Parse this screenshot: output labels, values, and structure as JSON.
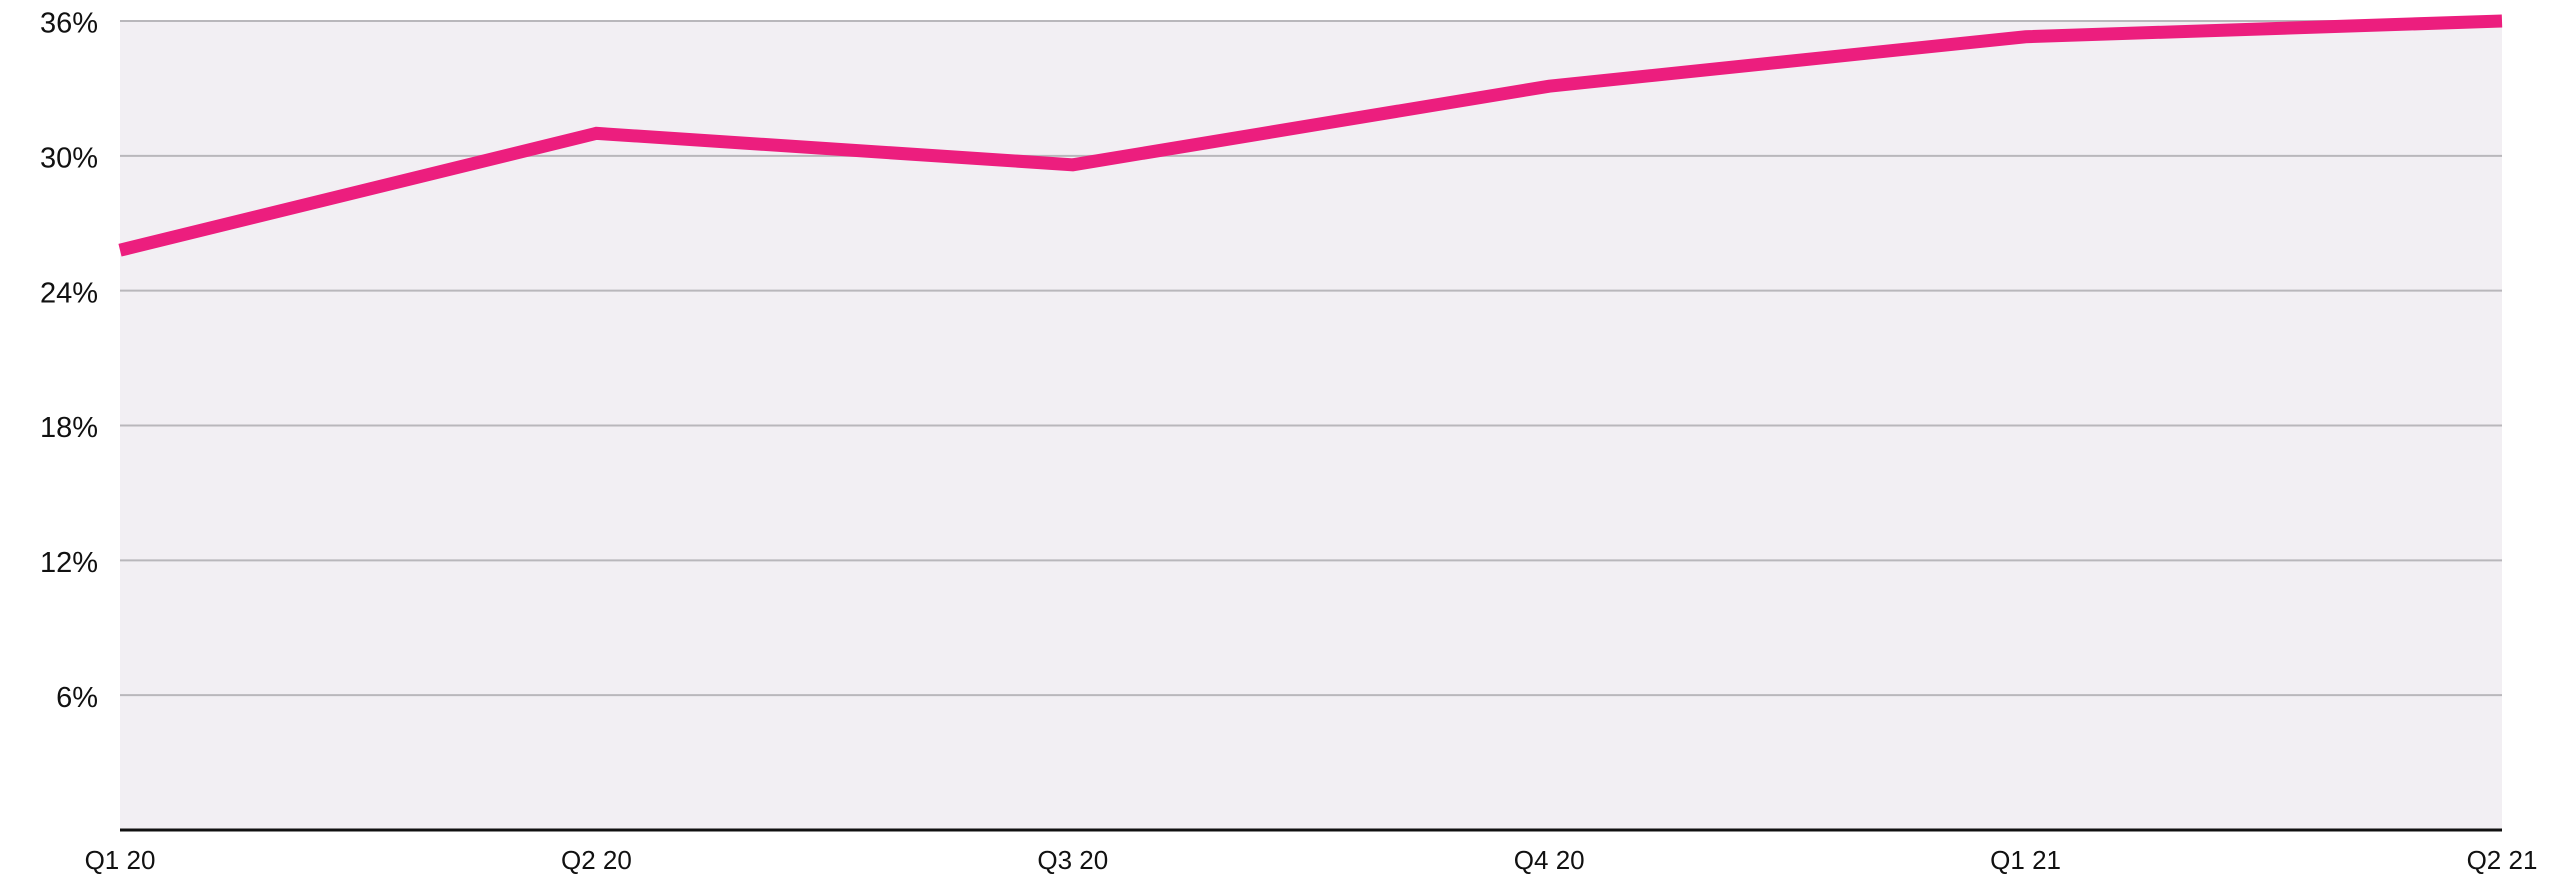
{
  "chart_data": {
    "type": "line",
    "categories": [
      "Q1 20",
      "Q2 20",
      "Q3 20",
      "Q4 20",
      "Q1 21",
      "Q2 21"
    ],
    "series": [
      {
        "color": "#ec1e7e",
        "values": [
          25.8,
          31,
          29.6,
          33.1,
          35.3,
          36
        ]
      }
    ],
    "ylim": [
      0,
      36
    ],
    "yticks": [
      {
        "value": 6,
        "label": "6%"
      },
      {
        "value": 12,
        "label": "12%"
      },
      {
        "value": 18,
        "label": "18%"
      },
      {
        "value": 24,
        "label": "24%"
      },
      {
        "value": 30,
        "label": "30%"
      },
      {
        "value": 36,
        "label": "36%"
      }
    ],
    "grid": true
  }
}
